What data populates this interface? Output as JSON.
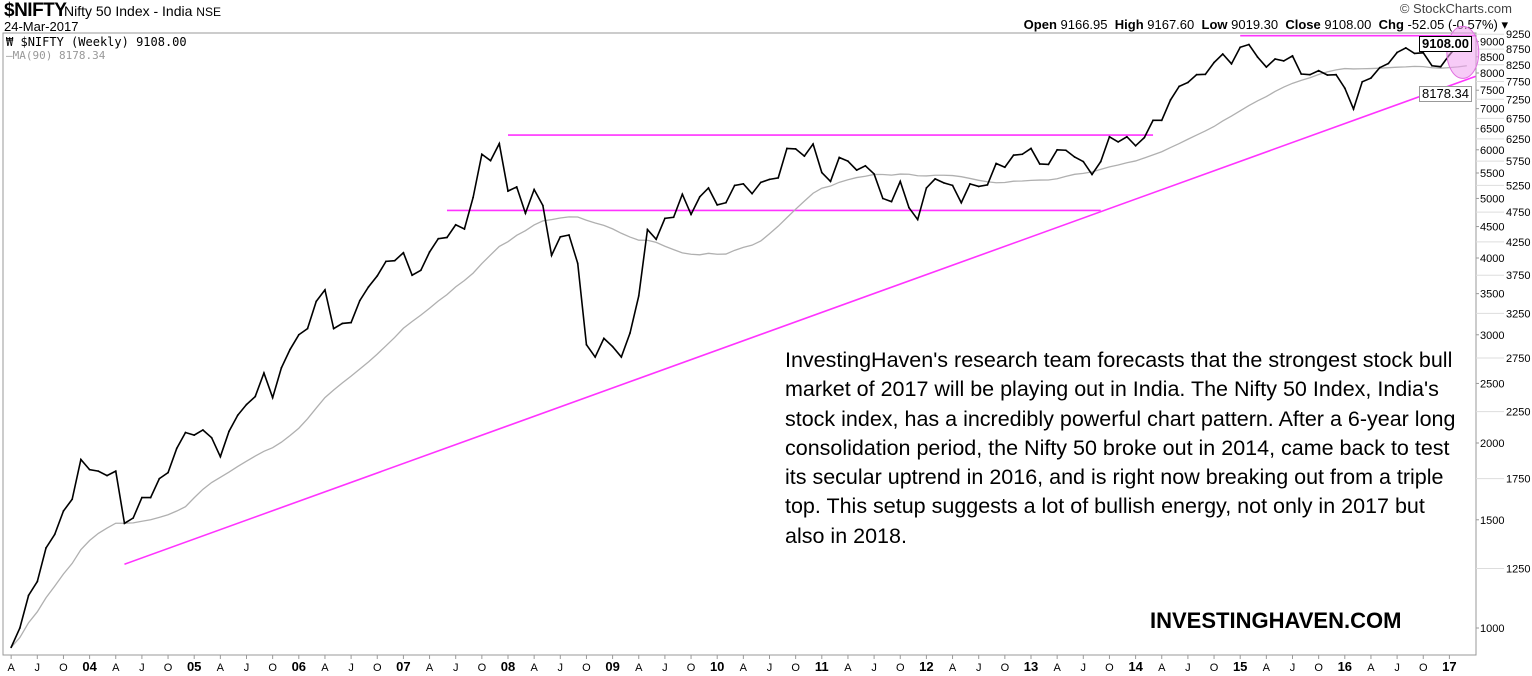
{
  "header": {
    "symbol": "$NIFTY",
    "name": "Nifty 50 Index - India",
    "exchange": "NSE",
    "date": "24-Mar-2017",
    "copyright": "© StockCharts.com",
    "open_label": "Open",
    "open": "9166.95",
    "high_label": "High",
    "high": "9167.60",
    "low_label": "Low",
    "low": "9019.30",
    "close_label": "Close",
    "close": "9108.00",
    "chg_label": "Chg",
    "chg": "-52.05 (-0.57%) ▾"
  },
  "legend": {
    "price": "$NIFTY (Weekly) 9108.00",
    "ma": "MA(90) 8178.34"
  },
  "last_price_label": "9108.00",
  "ma_last_label": "8178.34",
  "annotation": "InvestingHaven's research team forecasts that the strongest stock bull market of 2017 will be playing out in India. The Nifty 50 Index, India's stock index, has a incredibly powerful chart pattern. After a 6-year long consolidation period,  the Nifty 50 broke out in 2014, came back to test its secular uptrend in 2016, and is right now breaking out from a triple top. This setup suggests a lot of bullish energy, not only in 2017 but also in 2018.",
  "brand": "INVESTINGHAVEN.COM",
  "colors": {
    "price": "#000000",
    "ma": "#b0b0b0",
    "lines": "#ff33ff",
    "highlight": "#f0a0f0"
  },
  "chart_data": {
    "type": "line",
    "title": "$NIFTY Nifty 50 Index - India NSE",
    "y_scale": "log",
    "ylim": [
      880,
      9400
    ],
    "y_ticks": [
      1000,
      1250,
      1500,
      1750,
      2000,
      2250,
      2500,
      2750,
      3000,
      3250,
      3500,
      3750,
      4000,
      4250,
      4500,
      4750,
      5000,
      5250,
      5500,
      5750,
      6000,
      6250,
      6500,
      6750,
      7000,
      7250,
      7500,
      7750,
      8000,
      8250,
      8500,
      8750,
      9000,
      9250
    ],
    "x_tick_start": "2003-04",
    "x_tick_step_months": 3,
    "x_tick_labels": [
      "A",
      "J",
      "O",
      "04",
      "A",
      "J",
      "O",
      "05",
      "A",
      "J",
      "O",
      "06",
      "A",
      "J",
      "O",
      "07",
      "A",
      "J",
      "O",
      "08",
      "A",
      "J",
      "O",
      "09",
      "A",
      "J",
      "O",
      "10",
      "A",
      "J",
      "O",
      "11",
      "A",
      "J",
      "O",
      "12",
      "A",
      "J",
      "O",
      "13",
      "A",
      "J",
      "O",
      "14",
      "A",
      "J",
      "O",
      "15",
      "A",
      "J",
      "O",
      "16",
      "A",
      "J",
      "O",
      "17"
    ],
    "series_start": "2003-04",
    "series_step_months": 1,
    "series": [
      {
        "name": "$NIFTY (Weekly)",
        "values": [
          930,
          1000,
          1130,
          1190,
          1350,
          1420,
          1550,
          1620,
          1880,
          1810,
          1800,
          1770,
          1800,
          1480,
          1510,
          1630,
          1630,
          1750,
          1790,
          1960,
          2080,
          2060,
          2100,
          2040,
          1900,
          2090,
          2220,
          2310,
          2380,
          2600,
          2370,
          2650,
          2840,
          3000,
          3070,
          3400,
          3550,
          3070,
          3130,
          3140,
          3410,
          3590,
          3740,
          3950,
          3960,
          4080,
          3750,
          3820,
          4090,
          4300,
          4320,
          4530,
          4460,
          5020,
          5900,
          5760,
          6140,
          5140,
          5220,
          4730,
          5170,
          4870,
          4040,
          4330,
          4360,
          3920,
          2890,
          2760,
          2960,
          2870,
          2760,
          3020,
          3470,
          4450,
          4290,
          4640,
          4660,
          5080,
          4710,
          5030,
          5200,
          4880,
          4920,
          5250,
          5280,
          5090,
          5310,
          5370,
          5400,
          6030,
          6020,
          5860,
          6130,
          5510,
          5330,
          5830,
          5750,
          5560,
          5650,
          5480,
          5000,
          4940,
          5330,
          4830,
          4620,
          5200,
          5380,
          5300,
          5250,
          4920,
          5280,
          5230,
          5260,
          5700,
          5620,
          5880,
          5900,
          6030,
          5690,
          5680,
          6000,
          5990,
          5840,
          5740,
          5470,
          5740,
          6300,
          6180,
          6300,
          6090,
          6280,
          6700,
          6700,
          7230,
          7610,
          7720,
          7950,
          7960,
          8320,
          8590,
          8280,
          8810,
          8900,
          8490,
          8180,
          8430,
          8370,
          8530,
          7970,
          7950,
          8070,
          7940,
          7950,
          7560,
          6990,
          7740,
          7850,
          8160,
          8290,
          8640,
          8790,
          8610,
          8630,
          8220,
          8190,
          8560,
          8880,
          9108
        ]
      },
      {
        "name": "MA(90)",
        "window_months": 21
      }
    ],
    "overlays": [
      {
        "name": "resistance-2008-top",
        "from": "2008-01",
        "to": "2014-03",
        "level": 6340
      },
      {
        "name": "support-consolidation",
        "from": "2007-06",
        "to": "2013-09",
        "level": 4780
      },
      {
        "name": "triple-top",
        "from": "2015-01",
        "to": "2017-04",
        "level": 9200
      },
      {
        "name": "secular-uptrend",
        "from": "2004-05",
        "from_level": 1270,
        "to": "2017-04",
        "to_level": 7900
      }
    ]
  }
}
